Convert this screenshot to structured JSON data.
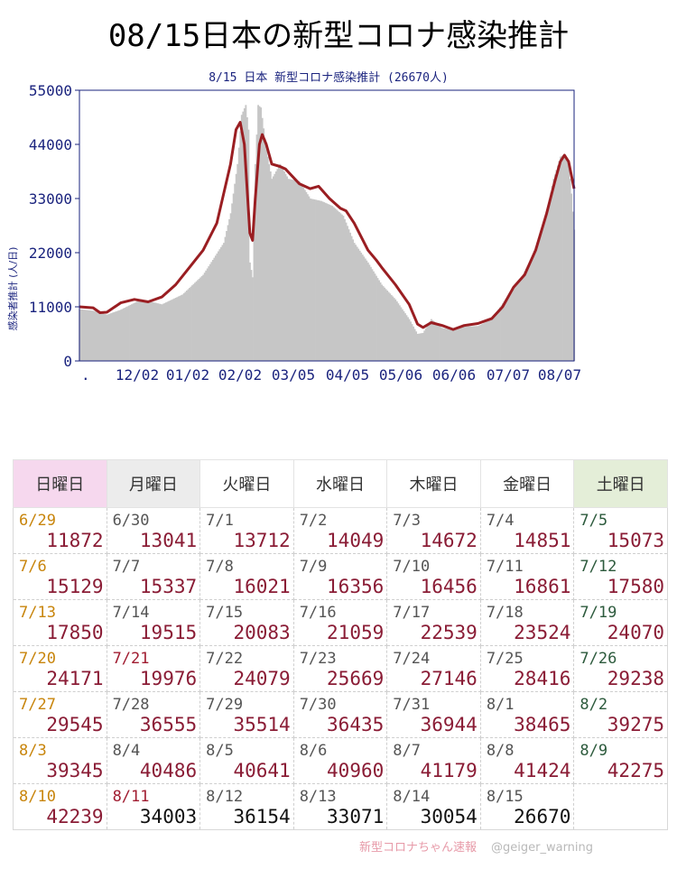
{
  "page_title": "08/15日本の新型コロナ感染推計",
  "footer": {
    "brand": "新型コロナちゃん速報",
    "handle": "@geiger_warning"
  },
  "chart_data": {
    "type": "bar+line",
    "title": "8/15 日本 新型コロナ感染推計 (26670人)",
    "ylabel": "感染者推計 (人/日)",
    "yticks": [
      0,
      11000,
      22000,
      33000,
      44000,
      55000
    ],
    "xticks": [
      ".",
      "12/02",
      "01/02",
      "02/02",
      "03/05",
      "04/05",
      "05/06",
      "06/06",
      "07/07",
      "08/07"
    ],
    "ylim": [
      0,
      55000
    ],
    "colors": {
      "bars": "#c6c6c6",
      "line": "#9a1e22",
      "axis": "#1a237e",
      "frame": "#1a237e"
    },
    "series": [
      {
        "name": "daily",
        "shape": [
          [
            0,
            10500
          ],
          [
            10,
            10200
          ],
          [
            20,
            9400
          ],
          [
            30,
            10400
          ],
          [
            45,
            12500
          ],
          [
            60,
            11500
          ],
          [
            75,
            13500
          ],
          [
            90,
            17500
          ],
          [
            105,
            24000
          ],
          [
            110,
            30000
          ],
          [
            115,
            40000
          ],
          [
            118,
            50000
          ],
          [
            121,
            52000
          ],
          [
            123,
            47000
          ],
          [
            124,
            20000
          ],
          [
            126,
            17000
          ],
          [
            128,
            40000
          ],
          [
            130,
            52000
          ],
          [
            132,
            51500
          ],
          [
            136,
            43000
          ],
          [
            140,
            37000
          ],
          [
            146,
            40000
          ],
          [
            152,
            37000
          ],
          [
            160,
            36500
          ],
          [
            168,
            33000
          ],
          [
            176,
            32500
          ],
          [
            184,
            31500
          ],
          [
            192,
            29500
          ],
          [
            200,
            24000
          ],
          [
            210,
            20000
          ],
          [
            220,
            15500
          ],
          [
            230,
            12500
          ],
          [
            240,
            8500
          ],
          [
            246,
            5500
          ],
          [
            250,
            5700
          ],
          [
            256,
            8500
          ],
          [
            264,
            6700
          ],
          [
            272,
            6300
          ],
          [
            280,
            7000
          ],
          [
            290,
            7100
          ],
          [
            300,
            8500
          ],
          [
            310,
            12500
          ],
          [
            320,
            16000
          ],
          [
            330,
            21500
          ],
          [
            340,
            30000
          ],
          [
            345,
            37000
          ],
          [
            350,
            41500
          ],
          [
            353,
            42000
          ],
          [
            356,
            40000
          ],
          [
            358,
            34000
          ],
          [
            360,
            26670
          ]
        ]
      },
      {
        "name": "avg",
        "shape": [
          [
            0,
            11000
          ],
          [
            10,
            10800
          ],
          [
            15,
            9800
          ],
          [
            20,
            9900
          ],
          [
            30,
            11800
          ],
          [
            40,
            12500
          ],
          [
            50,
            12000
          ],
          [
            60,
            13000
          ],
          [
            70,
            15500
          ],
          [
            80,
            19000
          ],
          [
            90,
            22500
          ],
          [
            100,
            28000
          ],
          [
            110,
            40000
          ],
          [
            114,
            47000
          ],
          [
            117,
            48500
          ],
          [
            120,
            44000
          ],
          [
            124,
            26000
          ],
          [
            126,
            24500
          ],
          [
            128,
            33000
          ],
          [
            131,
            44000
          ],
          [
            133,
            46000
          ],
          [
            136,
            44000
          ],
          [
            140,
            40000
          ],
          [
            146,
            39500
          ],
          [
            150,
            39000
          ],
          [
            160,
            36000
          ],
          [
            168,
            35000
          ],
          [
            174,
            35500
          ],
          [
            182,
            33000
          ],
          [
            190,
            31000
          ],
          [
            194,
            30500
          ],
          [
            200,
            28000
          ],
          [
            210,
            22500
          ],
          [
            216,
            20500
          ],
          [
            220,
            19000
          ],
          [
            230,
            15500
          ],
          [
            240,
            11500
          ],
          [
            246,
            7500
          ],
          [
            250,
            6800
          ],
          [
            256,
            7800
          ],
          [
            264,
            7200
          ],
          [
            272,
            6400
          ],
          [
            280,
            7200
          ],
          [
            290,
            7600
          ],
          [
            300,
            8600
          ],
          [
            308,
            11000
          ],
          [
            316,
            15000
          ],
          [
            324,
            17500
          ],
          [
            332,
            22500
          ],
          [
            340,
            30000
          ],
          [
            346,
            36500
          ],
          [
            350,
            40500
          ],
          [
            353,
            41800
          ],
          [
            356,
            40500
          ],
          [
            360,
            35000
          ]
        ]
      }
    ]
  },
  "calendar": {
    "headers": [
      "日曜日",
      "月曜日",
      "火曜日",
      "水曜日",
      "木曜日",
      "金曜日",
      "土曜日"
    ],
    "weeks": [
      [
        {
          "date": "6/29",
          "value": "11872"
        },
        {
          "date": "6/30",
          "value": "13041"
        },
        {
          "date": "7/1",
          "value": "13712"
        },
        {
          "date": "7/2",
          "value": "14049"
        },
        {
          "date": "7/3",
          "value": "14672"
        },
        {
          "date": "7/4",
          "value": "14851"
        },
        {
          "date": "7/5",
          "value": "15073"
        }
      ],
      [
        {
          "date": "7/6",
          "value": "15129"
        },
        {
          "date": "7/7",
          "value": "15337"
        },
        {
          "date": "7/8",
          "value": "16021"
        },
        {
          "date": "7/9",
          "value": "16356"
        },
        {
          "date": "7/10",
          "value": "16456"
        },
        {
          "date": "7/11",
          "value": "16861"
        },
        {
          "date": "7/12",
          "value": "17580"
        }
      ],
      [
        {
          "date": "7/13",
          "value": "17850"
        },
        {
          "date": "7/14",
          "value": "19515"
        },
        {
          "date": "7/15",
          "value": "20083"
        },
        {
          "date": "7/16",
          "value": "21059"
        },
        {
          "date": "7/17",
          "value": "22539"
        },
        {
          "date": "7/18",
          "value": "23524"
        },
        {
          "date": "7/19",
          "value": "24070"
        }
      ],
      [
        {
          "date": "7/20",
          "value": "24171"
        },
        {
          "date": "7/21",
          "value": "19976"
        },
        {
          "date": "7/22",
          "value": "24079"
        },
        {
          "date": "7/23",
          "value": "25669"
        },
        {
          "date": "7/24",
          "value": "27146"
        },
        {
          "date": "7/25",
          "value": "28416"
        },
        {
          "date": "7/26",
          "value": "29238"
        }
      ],
      [
        {
          "date": "7/27",
          "value": "29545"
        },
        {
          "date": "7/28",
          "value": "36555"
        },
        {
          "date": "7/29",
          "value": "35514"
        },
        {
          "date": "7/30",
          "value": "36435"
        },
        {
          "date": "7/31",
          "value": "36944"
        },
        {
          "date": "8/1",
          "value": "38465"
        },
        {
          "date": "8/2",
          "value": "39275"
        }
      ],
      [
        {
          "date": "8/3",
          "value": "39345"
        },
        {
          "date": "8/4",
          "value": "40486"
        },
        {
          "date": "8/5",
          "value": "40641"
        },
        {
          "date": "8/6",
          "value": "40960"
        },
        {
          "date": "8/7",
          "value": "41179"
        },
        {
          "date": "8/8",
          "value": "41424"
        },
        {
          "date": "8/9",
          "value": "42275"
        }
      ],
      [
        {
          "date": "8/10",
          "value": "42239"
        },
        {
          "date": "8/11",
          "value": "34003"
        },
        {
          "date": "8/12",
          "value": "36154"
        },
        {
          "date": "8/13",
          "value": "33071"
        },
        {
          "date": "8/14",
          "value": "30054"
        },
        {
          "date": "8/15",
          "value": "26670"
        },
        {
          "date": "",
          "value": ""
        }
      ]
    ]
  }
}
